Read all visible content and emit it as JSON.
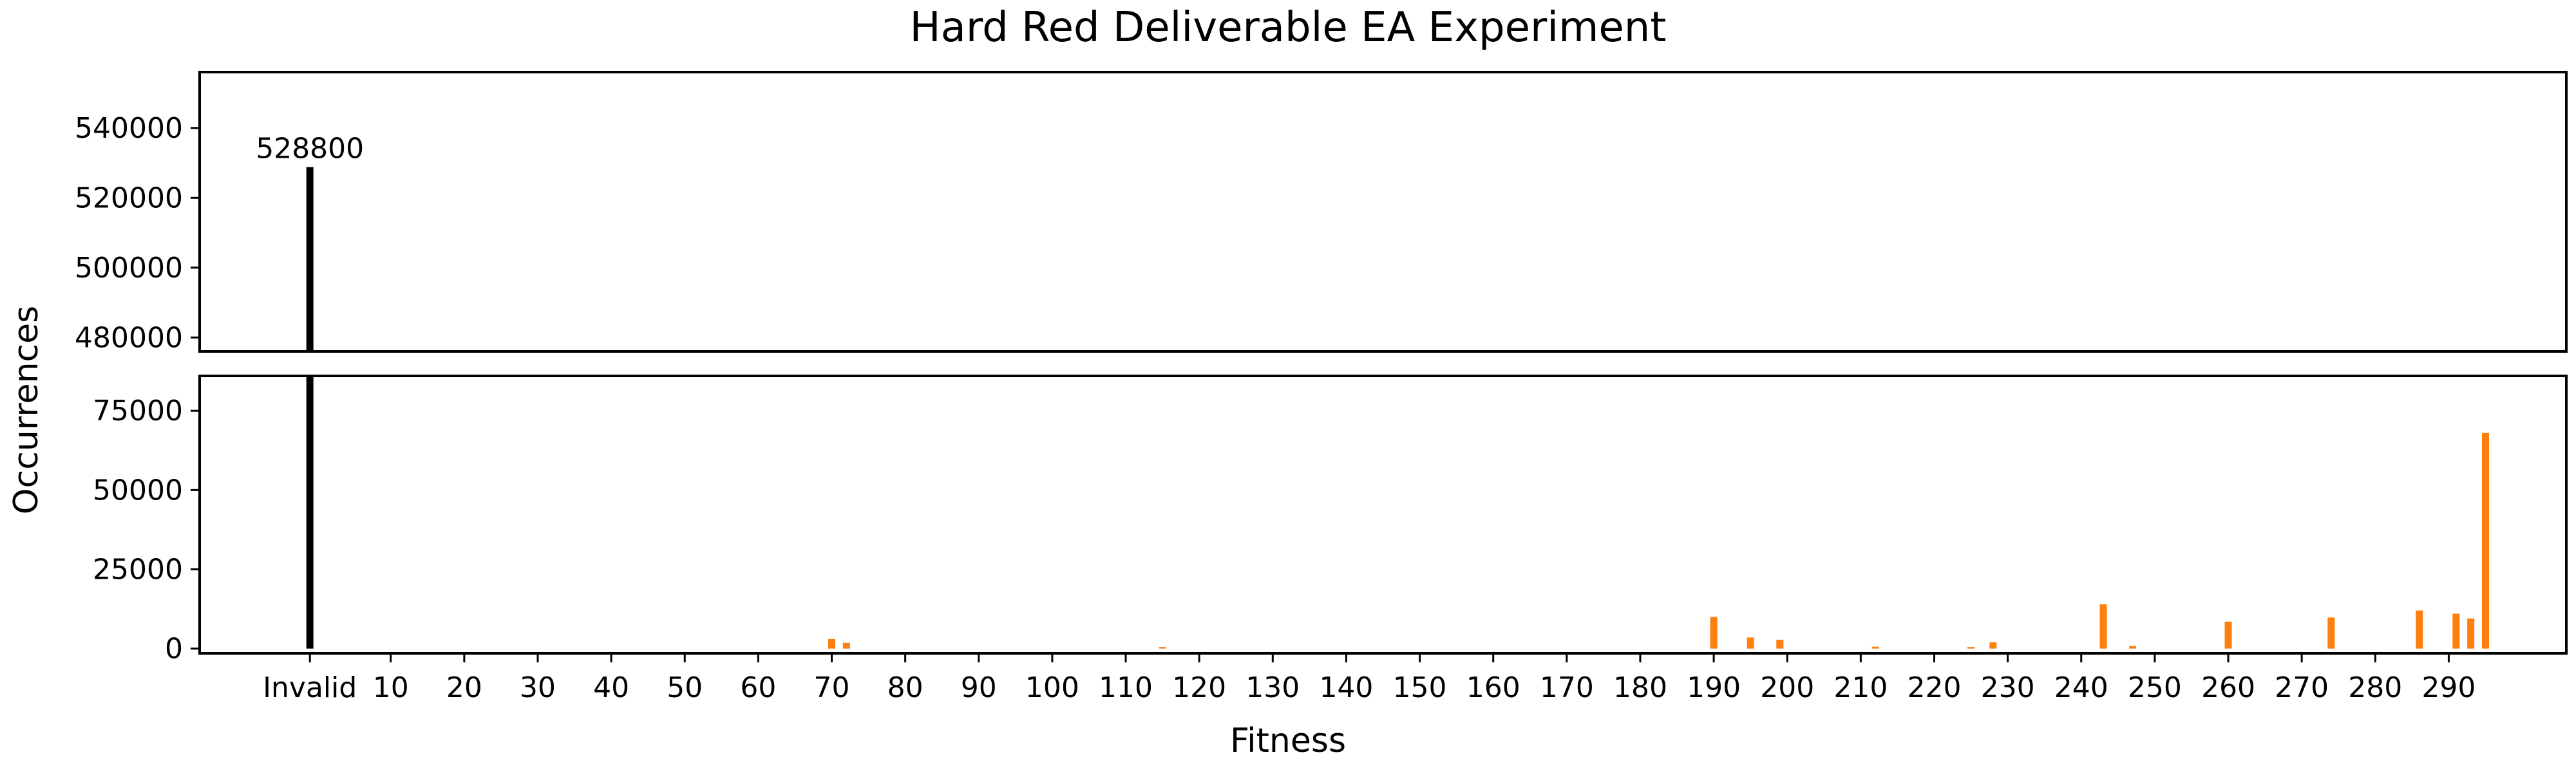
{
  "chart_data": {
    "type": "bar",
    "title": "Hard Red Deliverable EA Experiment",
    "xlabel": "Fitness",
    "ylabel": "Occurrences",
    "grid": false,
    "colors": {
      "invalid": "#000000",
      "valid": "#ff7f0e",
      "axes": "#000000"
    },
    "xlim": [
      -15,
      307
    ],
    "x_ticks": [
      {
        "value": 0,
        "label": "Invalid"
      },
      {
        "value": 11,
        "label": "10"
      },
      {
        "value": 21,
        "label": "20"
      },
      {
        "value": 31,
        "label": "30"
      },
      {
        "value": 41,
        "label": "40"
      },
      {
        "value": 51,
        "label": "50"
      },
      {
        "value": 61,
        "label": "60"
      },
      {
        "value": 71,
        "label": "70"
      },
      {
        "value": 81,
        "label": "80"
      },
      {
        "value": 91,
        "label": "90"
      },
      {
        "value": 101,
        "label": "100"
      },
      {
        "value": 111,
        "label": "110"
      },
      {
        "value": 121,
        "label": "120"
      },
      {
        "value": 131,
        "label": "130"
      },
      {
        "value": 141,
        "label": "140"
      },
      {
        "value": 151,
        "label": "150"
      },
      {
        "value": 161,
        "label": "160"
      },
      {
        "value": 171,
        "label": "170"
      },
      {
        "value": 181,
        "label": "180"
      },
      {
        "value": 191,
        "label": "190"
      },
      {
        "value": 201,
        "label": "200"
      },
      {
        "value": 211,
        "label": "210"
      },
      {
        "value": 221,
        "label": "220"
      },
      {
        "value": 231,
        "label": "230"
      },
      {
        "value": 241,
        "label": "240"
      },
      {
        "value": 251,
        "label": "250"
      },
      {
        "value": 261,
        "label": "260"
      },
      {
        "value": 271,
        "label": "270"
      },
      {
        "value": 281,
        "label": "280"
      },
      {
        "value": 291,
        "label": "290"
      }
    ],
    "panels": [
      {
        "name": "upper",
        "ylim": [
          476000,
          556000
        ],
        "yticks": [
          480000,
          500000,
          520000,
          540000
        ]
      },
      {
        "name": "lower",
        "ylim": [
          -1500,
          86000
        ],
        "yticks": [
          0,
          25000,
          50000,
          75000
        ]
      }
    ],
    "bars": [
      {
        "label": "Invalid",
        "x": 0,
        "value": 528800,
        "kind": "invalid"
      },
      {
        "label": "70",
        "x": 71,
        "value": 3000,
        "kind": "valid"
      },
      {
        "label": "72",
        "x": 73,
        "value": 1800,
        "kind": "valid"
      },
      {
        "label": "115",
        "x": 116,
        "value": 500,
        "kind": "valid"
      },
      {
        "label": "190",
        "x": 191,
        "value": 10000,
        "kind": "valid"
      },
      {
        "label": "195",
        "x": 196,
        "value": 3500,
        "kind": "valid"
      },
      {
        "label": "199",
        "x": 200,
        "value": 2800,
        "kind": "valid"
      },
      {
        "label": "212",
        "x": 213,
        "value": 600,
        "kind": "valid"
      },
      {
        "label": "225",
        "x": 226,
        "value": 500,
        "kind": "valid"
      },
      {
        "label": "228",
        "x": 229,
        "value": 2000,
        "kind": "valid"
      },
      {
        "label": "243",
        "x": 244,
        "value": 14000,
        "kind": "valid"
      },
      {
        "label": "247",
        "x": 248,
        "value": 800,
        "kind": "valid"
      },
      {
        "label": "260",
        "x": 261,
        "value": 8500,
        "kind": "valid"
      },
      {
        "label": "274",
        "x": 275,
        "value": 9800,
        "kind": "valid"
      },
      {
        "label": "286",
        "x": 287,
        "value": 12000,
        "kind": "valid"
      },
      {
        "label": "291",
        "x": 292,
        "value": 11000,
        "kind": "valid"
      },
      {
        "label": "293",
        "x": 294,
        "value": 9500,
        "kind": "valid"
      },
      {
        "label": "295",
        "x": 296,
        "value": 68000,
        "kind": "valid"
      }
    ],
    "annotations": [
      {
        "text": "528800",
        "x": 0,
        "value": 528800,
        "panel": "upper"
      }
    ]
  }
}
